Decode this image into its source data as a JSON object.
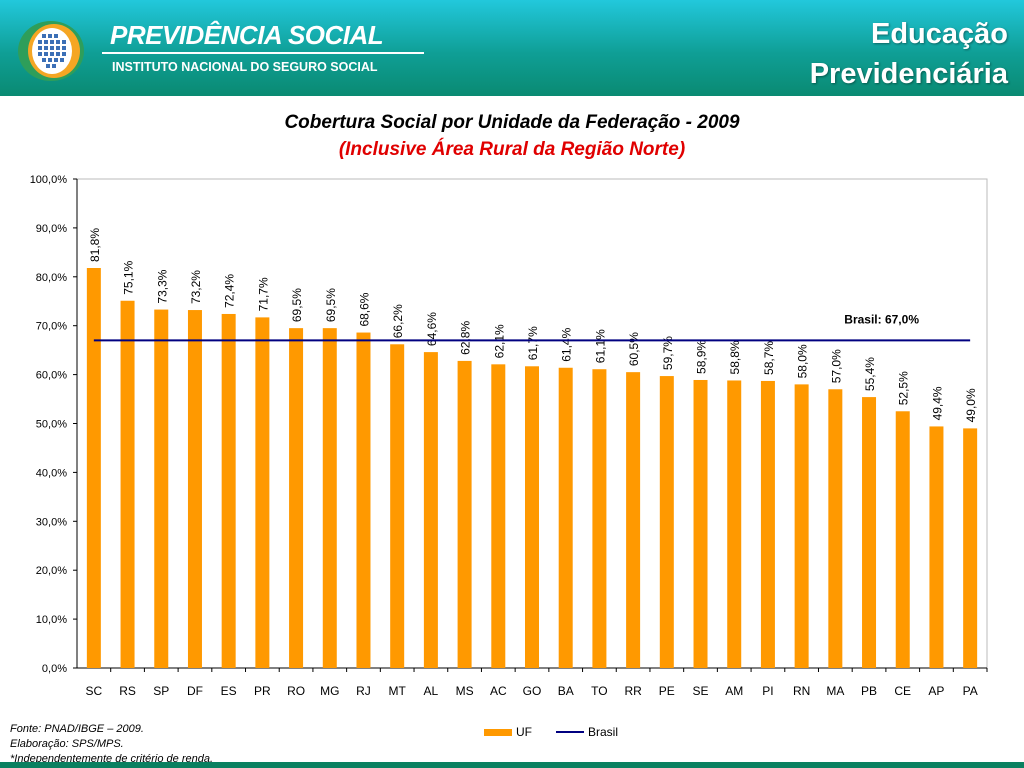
{
  "header": {
    "brand": "PREVIDÊNCIA SOCIAL",
    "subtitle": "INSTITUTO NACIONAL DO SEGURO SOCIAL",
    "section_line1": "Educação",
    "section_line2": "Previdenciária"
  },
  "footer": {
    "source": "Fonte: PNAD/IBGE – 2009.",
    "elaboration": "Elaboração: SPS/MPS.",
    "note": "*Independentemente de critério de renda."
  },
  "colors": {
    "bars": "#FF9900",
    "brasil_line": "#000080",
    "header": "#0f9f96"
  },
  "chart_data": {
    "type": "bar",
    "title": "Cobertura Social por Unidade da Federação - 2009",
    "subtitle": "(Inclusive Área Rural da Região Norte)",
    "categories": [
      "SC",
      "RS",
      "SP",
      "DF",
      "ES",
      "PR",
      "RO",
      "MG",
      "RJ",
      "MT",
      "AL",
      "MS",
      "AC",
      "GO",
      "BA",
      "TO",
      "RR",
      "PE",
      "SE",
      "AM",
      "PI",
      "RN",
      "MA",
      "PB",
      "CE",
      "AP",
      "PA"
    ],
    "series": [
      {
        "name": "UF",
        "type": "bar",
        "values": [
          81.8,
          75.1,
          73.3,
          73.2,
          72.4,
          71.7,
          69.5,
          69.5,
          68.6,
          66.2,
          64.6,
          62.8,
          62.1,
          61.7,
          61.4,
          61.1,
          60.5,
          59.7,
          58.9,
          58.8,
          58.7,
          58.0,
          57.0,
          55.4,
          52.5,
          49.4,
          49.0
        ],
        "data_labels": [
          "81,8%",
          "75,1%",
          "73,3%",
          "73,2%",
          "72,4%",
          "71,7%",
          "69,5%",
          "69,5%",
          "68,6%",
          "66,2%",
          "64,6%",
          "62,8%",
          "62,1%",
          "61,7%",
          "61,4%",
          "61,1%",
          "60,5%",
          "59,7%",
          "58,9%",
          "58,8%",
          "58,7%",
          "58,0%",
          "57,0%",
          "55,4%",
          "52,5%",
          "49,4%",
          "49,0%"
        ]
      },
      {
        "name": "Brasil",
        "type": "line",
        "value": 67.0,
        "label": "Brasil: 67,0%"
      }
    ],
    "ylim": [
      0,
      100
    ],
    "yticks": [
      0,
      10,
      20,
      30,
      40,
      50,
      60,
      70,
      80,
      90,
      100
    ],
    "ytick_labels": [
      "0,0%",
      "10,0%",
      "20,0%",
      "30,0%",
      "40,0%",
      "50,0%",
      "60,0%",
      "70,0%",
      "80,0%",
      "90,0%",
      "100,0%"
    ],
    "grid": false,
    "legend": [
      "UF",
      "Brasil"
    ],
    "legend_placement": "bottom"
  }
}
